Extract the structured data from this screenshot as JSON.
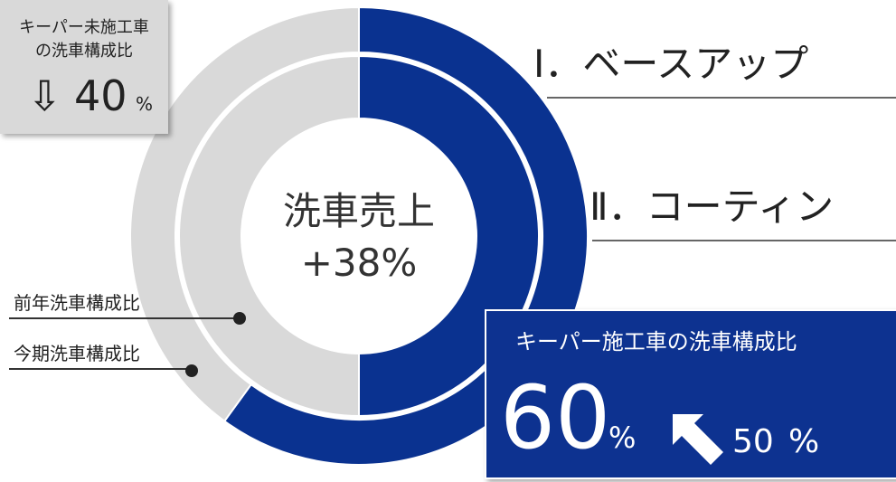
{
  "center": {
    "title": "洗車売上",
    "value": "+38%"
  },
  "rings": [
    {
      "name": "今期洗車構成比",
      "values": [
        60,
        40
      ],
      "colors": [
        "#0a3290",
        "#d9d9d9"
      ]
    },
    {
      "name": "前年洗車構成比",
      "values": [
        50,
        50
      ],
      "colors": [
        "#0a3290",
        "#d9d9d9"
      ]
    }
  ],
  "callout_unapplied": {
    "label_lines": [
      "キーパー未施工車",
      "の洗車構成比"
    ],
    "arrow": "⇩",
    "value": 40,
    "unit": "%"
  },
  "callout_applied": {
    "label": "キーパー施工車の洗車構成比",
    "value": 60,
    "unit": "%",
    "previous": 50
  },
  "headings": [
    "Ⅰ．ベースアップ",
    "Ⅱ．コーティン"
  ]
}
